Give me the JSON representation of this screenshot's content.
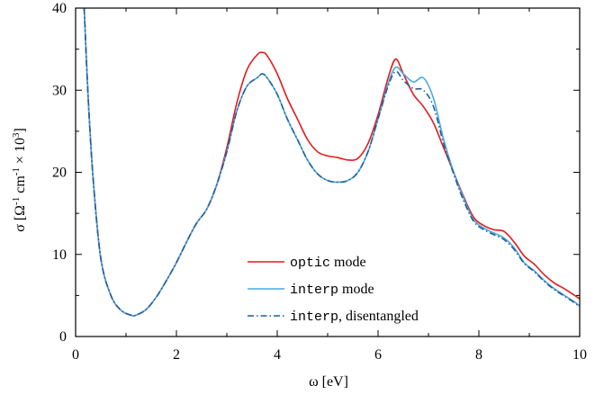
{
  "chart_data": {
    "type": "line",
    "xlabel": "ω [eV]",
    "ylabel": "σ [Ω-1 cm-1 × 103]",
    "ylabel_parts": {
      "prefix": "σ [Ω",
      "sup1": "-1",
      "mid": " cm",
      "sup2": "-1",
      "mid2": " × 10",
      "sup3": "3",
      "suffix": "]"
    },
    "xlim": [
      0,
      10
    ],
    "ylim": [
      0,
      40
    ],
    "xticks": [
      0,
      2,
      4,
      6,
      8,
      10
    ],
    "yticks": [
      0,
      10,
      20,
      30,
      40
    ],
    "grid": false,
    "legend_position": "lower-center",
    "series": [
      {
        "name": "optic mode",
        "legend_code": "optic",
        "legend_text": " mode",
        "color": "#e41a1c",
        "style": "solid",
        "x": [
          0.17,
          0.25,
          0.35,
          0.5,
          0.7,
          0.9,
          1.1,
          1.2,
          1.4,
          1.6,
          1.8,
          2.0,
          2.2,
          2.4,
          2.6,
          2.8,
          3.0,
          3.2,
          3.4,
          3.6,
          3.7,
          3.8,
          4.0,
          4.2,
          4.4,
          4.6,
          4.8,
          5.0,
          5.2,
          5.4,
          5.6,
          5.8,
          6.0,
          6.2,
          6.35,
          6.5,
          6.7,
          6.9,
          7.1,
          7.3,
          7.5,
          7.7,
          7.9,
          8.1,
          8.3,
          8.5,
          8.7,
          8.9,
          9.1,
          9.3,
          9.5,
          9.7,
          9.9,
          10.0
        ],
        "y": [
          40.0,
          29.0,
          19.0,
          9.5,
          5.0,
          3.2,
          2.6,
          2.6,
          3.3,
          4.8,
          6.8,
          9.0,
          11.5,
          13.8,
          15.5,
          18.5,
          23.0,
          28.5,
          32.5,
          34.3,
          34.6,
          34.2,
          32.0,
          29.0,
          26.5,
          24.0,
          22.5,
          22.0,
          21.8,
          21.5,
          21.7,
          23.5,
          27.0,
          31.5,
          33.8,
          32.0,
          29.5,
          28.0,
          26.0,
          23.0,
          20.0,
          17.0,
          14.5,
          13.5,
          13.0,
          12.8,
          11.5,
          9.8,
          8.8,
          7.5,
          6.5,
          5.8,
          5.0,
          4.6
        ]
      },
      {
        "name": "interp mode",
        "legend_code": "interp",
        "legend_text": " mode",
        "color": "#4aa8e0",
        "style": "solid",
        "x": [
          0.17,
          0.25,
          0.35,
          0.5,
          0.7,
          0.9,
          1.1,
          1.2,
          1.4,
          1.6,
          1.8,
          2.0,
          2.2,
          2.4,
          2.6,
          2.8,
          3.0,
          3.2,
          3.4,
          3.6,
          3.7,
          3.8,
          4.0,
          4.2,
          4.4,
          4.6,
          4.8,
          5.0,
          5.2,
          5.4,
          5.6,
          5.8,
          6.0,
          6.2,
          6.35,
          6.5,
          6.7,
          6.9,
          7.1,
          7.3,
          7.5,
          7.7,
          7.9,
          8.1,
          8.3,
          8.5,
          8.7,
          8.9,
          9.1,
          9.3,
          9.5,
          9.7,
          9.9,
          10.0
        ],
        "y": [
          40.0,
          29.0,
          19.0,
          9.5,
          5.0,
          3.2,
          2.6,
          2.6,
          3.3,
          4.8,
          6.8,
          9.0,
          11.5,
          13.8,
          15.5,
          18.5,
          22.5,
          27.5,
          30.5,
          31.5,
          32.0,
          31.5,
          29.5,
          26.5,
          24.0,
          21.5,
          19.8,
          19.0,
          18.8,
          19.0,
          20.0,
          22.5,
          26.5,
          30.8,
          32.8,
          32.0,
          31.0,
          31.5,
          29.0,
          24.0,
          20.0,
          16.8,
          14.2,
          13.2,
          12.6,
          12.0,
          10.8,
          9.0,
          8.0,
          6.8,
          5.8,
          5.0,
          4.2,
          3.7
        ]
      },
      {
        "name": "interp, disentangled",
        "legend_code": "interp",
        "legend_text": ", disentangled",
        "color": "#1f5f99",
        "style": "dashdot",
        "x": [
          0.17,
          0.25,
          0.35,
          0.5,
          0.7,
          0.9,
          1.1,
          1.2,
          1.4,
          1.6,
          1.8,
          2.0,
          2.2,
          2.4,
          2.6,
          2.8,
          3.0,
          3.2,
          3.4,
          3.6,
          3.7,
          3.8,
          4.0,
          4.2,
          4.4,
          4.6,
          4.8,
          5.0,
          5.2,
          5.4,
          5.6,
          5.8,
          6.0,
          6.2,
          6.35,
          6.5,
          6.7,
          6.9,
          7.1,
          7.3,
          7.5,
          7.7,
          7.9,
          8.1,
          8.3,
          8.5,
          8.7,
          8.9,
          9.1,
          9.3,
          9.5,
          9.7,
          9.9,
          10.0
        ],
        "y": [
          40.0,
          29.0,
          19.0,
          9.5,
          5.0,
          3.2,
          2.6,
          2.6,
          3.3,
          4.8,
          6.8,
          9.0,
          11.5,
          13.8,
          15.5,
          18.5,
          22.5,
          27.5,
          30.5,
          31.5,
          32.0,
          31.5,
          29.5,
          26.5,
          24.0,
          21.5,
          19.8,
          19.0,
          18.8,
          19.0,
          20.0,
          22.5,
          26.5,
          30.5,
          32.3,
          31.2,
          30.2,
          30.0,
          28.0,
          23.5,
          19.8,
          16.5,
          14.0,
          13.0,
          12.4,
          11.8,
          10.6,
          8.9,
          7.9,
          6.7,
          5.7,
          4.9,
          4.1,
          3.6
        ]
      }
    ]
  }
}
